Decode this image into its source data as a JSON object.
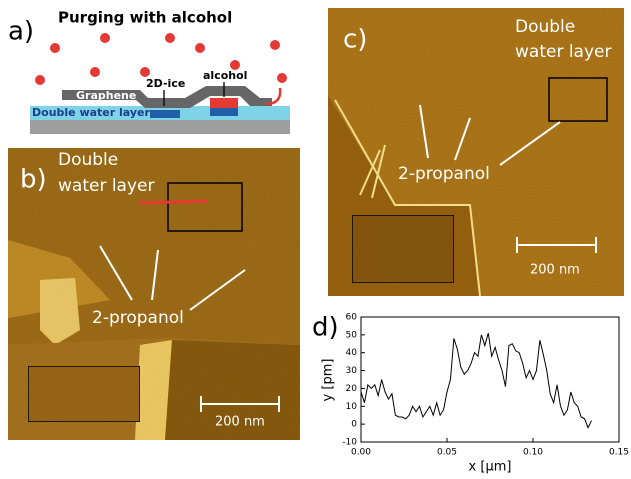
{
  "panel_a": {
    "label": "a)",
    "title": "Purging with alcohol",
    "graphene": "Graphene",
    "ice": "2D-ice",
    "alcohol": "alcohol",
    "water": "Double water layer"
  },
  "panel_b": {
    "label": "b)",
    "line1": "Double",
    "line2": "water layer",
    "molecule": "2-propanol",
    "scale": "200 nm"
  },
  "panel_c": {
    "label": "c)",
    "line1": "Double",
    "line2": "water layer",
    "molecule": "2-propanol",
    "scale": "200 nm"
  },
  "chart_data": {
    "type": "line",
    "panel_label": "d)",
    "xlabel": "x [µm]",
    "ylabel": "y [pm]",
    "xlim": [
      0,
      0.15
    ],
    "ylim": [
      -10,
      60
    ],
    "xticks": [
      {
        "value": 0,
        "label": "0.00"
      },
      {
        "value": 0.05,
        "label": "0.05"
      },
      {
        "value": 0.1,
        "label": "0.10"
      },
      {
        "value": 0.15,
        "label": "0.15"
      }
    ],
    "yticks": [
      -10,
      0,
      10,
      20,
      30,
      40,
      50,
      60
    ],
    "series": [
      {
        "color": "#000000",
        "x": [
          0,
          0.002,
          0.004,
          0.006,
          0.008,
          0.01,
          0.012,
          0.014,
          0.016,
          0.018,
          0.02,
          0.022,
          0.024,
          0.026,
          0.028,
          0.03,
          0.032,
          0.034,
          0.036,
          0.038,
          0.04,
          0.042,
          0.044,
          0.046,
          0.048,
          0.05,
          0.052,
          0.054,
          0.056,
          0.058,
          0.06,
          0.062,
          0.064,
          0.066,
          0.068,
          0.07,
          0.072,
          0.074,
          0.076,
          0.078,
          0.08,
          0.082,
          0.084,
          0.086,
          0.088,
          0.09,
          0.092,
          0.094,
          0.096,
          0.098,
          0.1,
          0.102,
          0.104,
          0.106,
          0.108,
          0.11,
          0.112,
          0.114,
          0.116,
          0.118,
          0.12,
          0.122,
          0.124,
          0.126,
          0.128,
          0.13,
          0.132,
          0.134
        ],
        "values": [
          18,
          12,
          22,
          20,
          22,
          16,
          25,
          18,
          14,
          17,
          5,
          4,
          4,
          3,
          5,
          10,
          7,
          10,
          4,
          7,
          10,
          5,
          12,
          5,
          8,
          18,
          25,
          48,
          42,
          32,
          28,
          30,
          34,
          40,
          38,
          50,
          44,
          51,
          38,
          43,
          36,
          30,
          21,
          44,
          45,
          41,
          40,
          34,
          26,
          30,
          25,
          30,
          47,
          39,
          30,
          17,
          12,
          22,
          10,
          5,
          8,
          18,
          12,
          10,
          4,
          3,
          -2,
          2
        ]
      }
    ]
  }
}
